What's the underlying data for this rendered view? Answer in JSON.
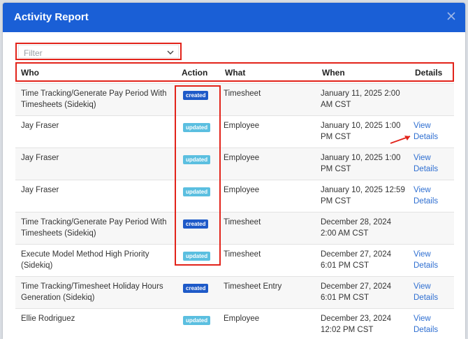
{
  "modal": {
    "title": "Activity Report"
  },
  "filter": {
    "placeholder": "Filter"
  },
  "table": {
    "headers": {
      "who": "Who",
      "action": "Action",
      "what": "What",
      "when": "When",
      "details": "Details"
    },
    "rows": [
      {
        "who": "Time Tracking/Generate Pay Period With Timesheets (Sidekiq)",
        "action": "created",
        "what": "Timesheet",
        "when": "January 11, 2025 2:00 AM CST",
        "details": ""
      },
      {
        "who": "Jay Fraser",
        "action": "updated",
        "what": "Employee",
        "when": "January 10, 2025 1:00 PM CST",
        "details": "View Details"
      },
      {
        "who": "Jay Fraser",
        "action": "updated",
        "what": "Employee",
        "when": "January 10, 2025 1:00 PM CST",
        "details": "View Details"
      },
      {
        "who": "Jay Fraser",
        "action": "updated",
        "what": "Employee",
        "when": "January 10, 2025 12:59 PM CST",
        "details": "View Details"
      },
      {
        "who": "Time Tracking/Generate Pay Period With Timesheets (Sidekiq)",
        "action": "created",
        "what": "Timesheet",
        "when": "December 28, 2024 2:00 AM CST",
        "details": ""
      },
      {
        "who": "Execute Model Method High Priority (Sidekiq)",
        "action": "updated",
        "what": "Timesheet",
        "when": "December 27, 2024 6:01 PM CST",
        "details": "View Details"
      },
      {
        "who": "Time Tracking/Timesheet Holiday Hours Generation (Sidekiq)",
        "action": "created",
        "what": "Timesheet Entry",
        "when": "December 27, 2024 6:01 PM CST",
        "details": "View Details"
      },
      {
        "who": "Ellie Rodriguez",
        "action": "updated",
        "what": "Employee",
        "when": "December 23, 2024 12:02 PM CST",
        "details": "View Details"
      }
    ]
  },
  "colors": {
    "header_bg": "#1a5fd6",
    "created_badge": "#1e5ac8",
    "updated_badge": "#5bbfe0",
    "link": "#2f6fd1",
    "annotation_red": "#e2231a"
  },
  "icons": {
    "close": "close-icon",
    "filter_chevron": "chevron-down-icon"
  }
}
